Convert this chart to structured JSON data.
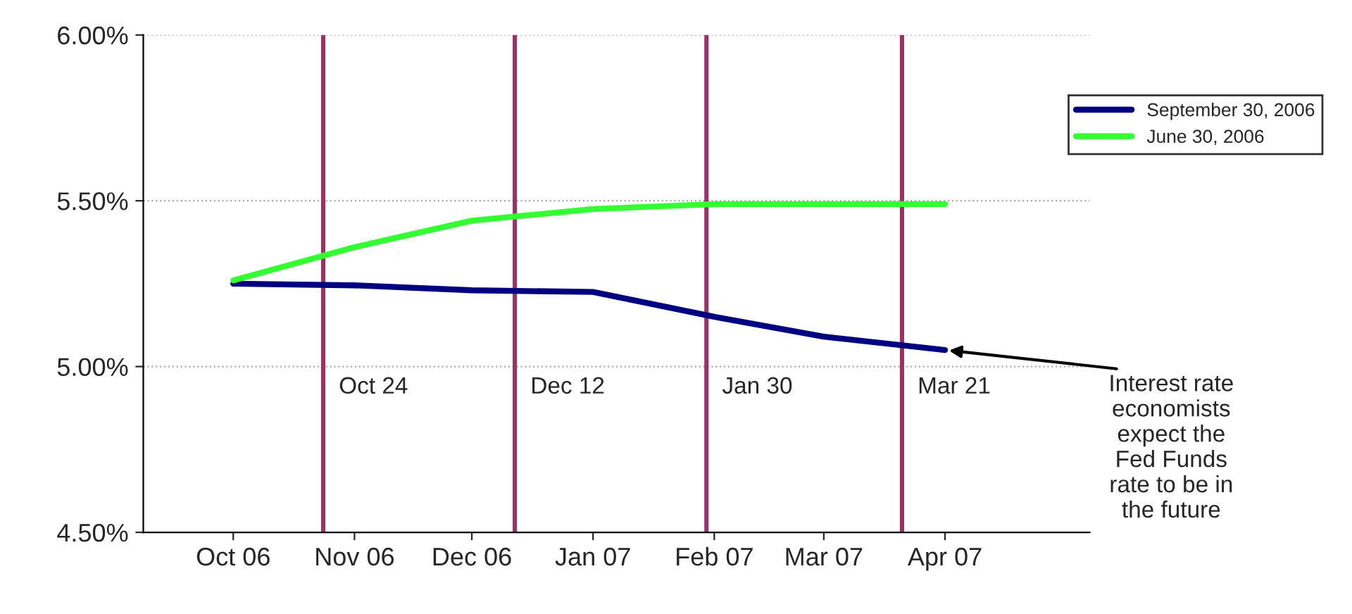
{
  "chart_data": {
    "type": "line",
    "x": [
      "2006-10",
      "2006-11",
      "2006-12",
      "2007-01",
      "2007-02",
      "2007-03",
      "2007-04"
    ],
    "xlim": [
      "2006-09-08",
      "2007-05-08"
    ],
    "xticks": [
      {
        "value": "2006-10",
        "label": "Oct 06"
      },
      {
        "value": "2006-11",
        "label": "Nov 06"
      },
      {
        "value": "2006-12",
        "label": "Dec 06"
      },
      {
        "value": "2007-01",
        "label": "Jan 07"
      },
      {
        "value": "2007-02",
        "label": "Feb 07"
      },
      {
        "value": "2007-03",
        "label": "Mar 07"
      },
      {
        "value": "2007-04",
        "label": "Apr 07"
      }
    ],
    "series": [
      {
        "name": "September 30, 2006",
        "color": "#000080",
        "values": [
          5.25,
          5.245,
          5.23,
          5.225,
          5.15,
          5.09,
          5.05
        ]
      },
      {
        "name": "June 30, 2006",
        "color": "#33ff33",
        "values": [
          5.26,
          5.36,
          5.44,
          5.475,
          5.49,
          5.49,
          5.49
        ]
      }
    ],
    "ylim": [
      4.5,
      6.0
    ],
    "yticks": [
      {
        "value": 4.5,
        "label": "4.50%"
      },
      {
        "value": 5.0,
        "label": "5.00%"
      },
      {
        "value": 5.5,
        "label": "5.50%"
      },
      {
        "value": 6.0,
        "label": "6.00%"
      }
    ],
    "ref_lines": [
      {
        "axis": "x",
        "value": "2006-10-24",
        "label": "Oct 24",
        "color": "#993366"
      },
      {
        "axis": "x",
        "value": "2006-12-12",
        "label": "Dec 12",
        "color": "#993366"
      },
      {
        "axis": "x",
        "value": "2007-01-30",
        "label": "Jan 30",
        "color": "#993366"
      },
      {
        "axis": "x",
        "value": "2007-03-21",
        "label": "Mar 21",
        "color": "#993366"
      }
    ],
    "annotations": [
      {
        "text": "Interest rate\neconomists\nexpect the\nFed Funds\nrate to be in\nthe future",
        "x": "2007-04",
        "y": 5.05
      }
    ],
    "grid": "y",
    "legend": "top right",
    "marker": "none",
    "line_style": "solid"
  }
}
